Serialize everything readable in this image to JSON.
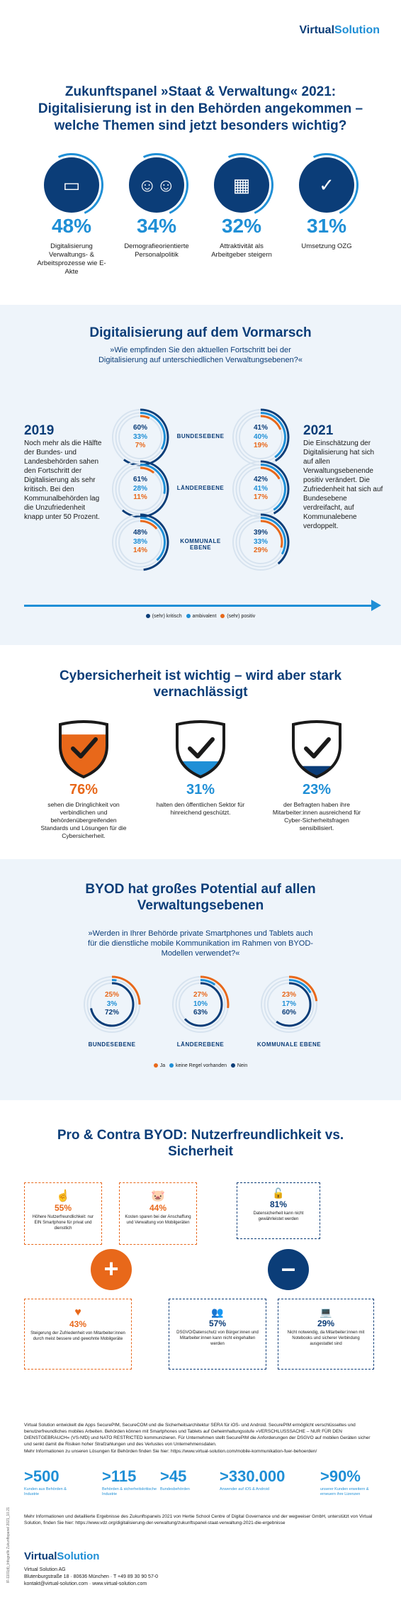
{
  "brand": {
    "name_a": "Virtual",
    "name_b": "Solution"
  },
  "header": {
    "title": "Zukunftspanel »Staat & Verwaltung« 2021: Digitalisierung ist in den Behörden angekommen – welche Themen sind jetzt besonders wichtig?"
  },
  "topics": [
    {
      "pct": "48%",
      "label": "Digitalisierung Verwaltungs- & Arbeitsprozesse wie E-Akte",
      "icon": "monitor-icon"
    },
    {
      "pct": "34%",
      "label": "Demografieorientierte Personalpolitik",
      "icon": "people-icon"
    },
    {
      "pct": "32%",
      "label": "Attraktivität als Arbeitgeber steigern",
      "icon": "building-icon"
    },
    {
      "pct": "31%",
      "label": "Umsetzung OZG",
      "icon": "shield-check-icon"
    }
  ],
  "progress": {
    "title": "Digitalisierung auf dem Vormarsch",
    "question": "»Wie empfinden Sie den aktuellen Fortschritt bei der Digitalisierung auf unterschiedlichen Verwaltungsebenen?«",
    "year_left": "2019",
    "text_left": "Noch mehr als die Hälfte der Bundes- und Landesbehörden sahen den Fortschritt der Digitalisierung als sehr kritisch. Bei den Kommunalbehörden lag die Unzufriedenheit knapp unter 50 Prozent.",
    "year_right": "2021",
    "text_right": "Die Einschätzung der Digitalisierung hat sich auf allen Verwaltungsebenende positiv verändert. Die Zufriedenheit hat sich auf Bundesebene verdreifacht, auf Kommunalebene verdoppelt.",
    "levels": [
      "BUNDESEBENE",
      "LÄNDEREBENE",
      "KOMMUNALE EBENE"
    ],
    "legend": [
      "(sehr) kritisch",
      "ambivalent",
      "(sehr) positiv"
    ],
    "colors": [
      "#0b3d78",
      "#1f8fd6",
      "#e8681a"
    ]
  },
  "chart_data": [
    {
      "type": "donut",
      "title": "2019",
      "categories": [
        "(sehr) kritisch",
        "ambivalent",
        "(sehr) positiv"
      ],
      "series": [
        {
          "name": "BUNDESEBENE",
          "values": [
            60,
            33,
            7
          ],
          "labels": [
            "60%",
            "33%",
            "7%"
          ]
        },
        {
          "name": "LÄNDEREBENE",
          "values": [
            61,
            28,
            11
          ],
          "labels": [
            "61%",
            "28%",
            "11%"
          ]
        },
        {
          "name": "KOMMUNALE EBENE",
          "values": [
            48,
            38,
            14
          ],
          "labels": [
            "48%",
            "38%",
            "14%"
          ]
        }
      ]
    },
    {
      "type": "donut",
      "title": "2021",
      "categories": [
        "(sehr) kritisch",
        "ambivalent",
        "(sehr) positiv"
      ],
      "series": [
        {
          "name": "BUNDESEBENE",
          "values": [
            41,
            40,
            19
          ],
          "labels": [
            "41%",
            "40%",
            "19%"
          ]
        },
        {
          "name": "LÄNDEREBENE",
          "values": [
            42,
            41,
            17
          ],
          "labels": [
            "42%",
            "41%",
            "17%"
          ]
        },
        {
          "name": "KOMMUNALE EBENE",
          "values": [
            39,
            33,
            29
          ],
          "labels": [
            "39%",
            "33%",
            "29%"
          ]
        }
      ]
    },
    {
      "type": "donut",
      "title": "BYOD",
      "categories": [
        "Ja",
        "keine Regel vorhanden",
        "Nein"
      ],
      "series": [
        {
          "name": "BUNDESEBENE",
          "values": [
            25,
            3,
            72
          ],
          "labels": [
            "25%",
            "3%",
            "72%"
          ]
        },
        {
          "name": "LÄNDEREBENE",
          "values": [
            27,
            10,
            63
          ],
          "labels": [
            "27%",
            "10%",
            "63%"
          ]
        },
        {
          "name": "KOMMUNALE EBENE",
          "values": [
            23,
            17,
            60
          ],
          "labels": [
            "23%",
            "17%",
            "60%"
          ]
        }
      ]
    }
  ],
  "cyber": {
    "title": "Cybersicherheit ist wichtig – wird aber stark vernachlässigt",
    "items": [
      {
        "pct": "76%",
        "value": 76,
        "color": "#e8681a",
        "text": "sehen die Dringlichkeit von verbindlichen und behördenübergreifenden Standards und Lösungen für die Cybersicherheit."
      },
      {
        "pct": "31%",
        "value": 31,
        "color": "#1f8fd6",
        "text": "halten den öffentlichen Sektor für hinreichend geschützt."
      },
      {
        "pct": "23%",
        "value": 23,
        "color": "#0b3d78",
        "text": "der Befragten haben ihre Mitarbeiter:innen ausreichend für Cyber-Sicherheitsfragen sensibilisiert."
      }
    ]
  },
  "byod": {
    "title": "BYOD hat großes Potential auf allen Verwaltungsebenen",
    "question": "»Werden in Ihrer Behörde private Smartphones und Tablets auch für die dienstliche mobile Kommunikation im Rahmen von BYOD-Modellen verwendet?«",
    "levels": [
      "BUNDESEBENE",
      "LÄNDEREBENE",
      "KOMMUNALE EBENE"
    ],
    "legend": [
      "Ja",
      "keine Regel vorhanden",
      "Nein"
    ],
    "colors": [
      "#e8681a",
      "#1f8fd6",
      "#0b3d78"
    ]
  },
  "procontra": {
    "title": "Pro & Contra BYOD: Nutzerfreundlichkeit vs. Sicherheit",
    "plus": "+",
    "minus": "–",
    "pro": [
      {
        "pct": "55%",
        "text": "Höhere Nutzerfreundlichkeit: nur EIN Smartphone für privat und dienstlich"
      },
      {
        "pct": "44%",
        "text": "Kosten sparen bei der Anschaffung und Verwaltung von Mobilgeräten"
      },
      {
        "pct": "43%",
        "text": "Steigerung der Zufriedenheit von Mitarbeiter:innen durch meist bessere und gewohnte Mobilgeräte"
      }
    ],
    "contra": [
      {
        "pct": "81%",
        "text": "Datensicherheit kann nicht gewährleistet werden"
      },
      {
        "pct": "57%",
        "text": "DSGVO/Datenschutz von Bürger:innen und Mitarbeiter:innen kann nicht eingehalten werden"
      },
      {
        "pct": "29%",
        "text": "Nicht notwendig, da Mitarbeiter:innen mit Notebooks und sicherer Verbindung ausgestattet sind"
      }
    ]
  },
  "footer": {
    "about": "Virtual Solution entwickelt die Apps SecurePIM, SecureCOM und die Sicherheitsarchitektur SERA für iOS- und Android. SecurePIM ermöglicht verschlüsseltes und benutzerfreundliches mobiles Arbeiten. Behörden können mit Smartphones und Tablets auf Geheimhaltungsstufe »VERSCHLUSSSACHE – NUR FÜR DEN DIENSTGEBRAUCH« (VS-NfD) und NATO RESTRICTED kommunizieren. Für Unternehmen stellt SecurePIM die Anforderungen der DSGVO auf mobilen Geräten sicher und senkt damit die Risiken hoher Strafzahlungen und des Verlustes von Unternehmensdaten.",
    "more": "Mehr Informationen zu unseren Lösungen für Behörden finden Sie hier: https://www.virtual-solution.com/mobile-kommunikation-fuer-behoerden/",
    "stats": [
      {
        "num": ">500",
        "label": "Kunden aus Behörden & Industrie"
      },
      {
        "num": ">115",
        "label": "Behörden & sicherheitskritische Industrie"
      },
      {
        "num": ">45",
        "label": "Bundesbehörden"
      },
      {
        "num": ">330.000",
        "label": "Anwender auf iOS & Android"
      },
      {
        "num": ">90%",
        "label": "unserer Kunden erweitern & erneuern ihre Lizenzen"
      }
    ],
    "source": "Mehr Informationen und detaillierte Ergebnisse des Zukunftspanels 2021 von Hertie School Centre of Digital Governance und der wegweiser GmbH, unterstützt von Virtual Solution, finden Sie hier: https://www.vdz.org/digitalisierung-der-verwaltung/zukunftspanel-staat-verwaltung-2021-die-ergebnisse",
    "company": "Virtual Solution AG",
    "address": "Blutenburgstraße 18 · 80636 München · T +49 89 30 90 57-0",
    "contact": "kontakt@virtual-solution.com · www.virtual-solution.com",
    "side": "IF-1101(d)_Infografik Zukunftspanel 2021_10.21"
  }
}
